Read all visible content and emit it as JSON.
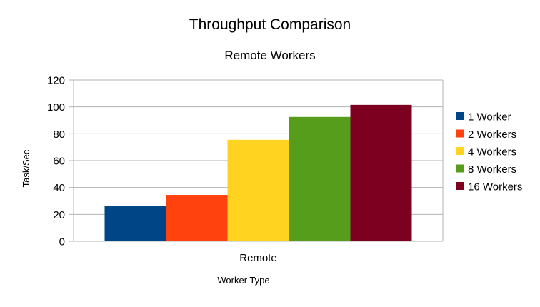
{
  "chart_data": {
    "type": "bar",
    "title": "Throughput Comparison",
    "subtitle": "Remote Workers",
    "xlabel": "Worker Type",
    "ylabel": "Task/Sec",
    "categories": [
      "Remote"
    ],
    "ylim": [
      0,
      120
    ],
    "yticks": [
      0,
      20,
      40,
      60,
      80,
      100,
      120
    ],
    "grid": true,
    "legend_position": "right",
    "series": [
      {
        "name": "1 Worker",
        "values": [
          26.5
        ],
        "color": "#004586"
      },
      {
        "name": "2 Workers",
        "values": [
          34.5
        ],
        "color": "#ff420e"
      },
      {
        "name": "4 Workers",
        "values": [
          75.5
        ],
        "color": "#ffd320"
      },
      {
        "name": "8 Workers",
        "values": [
          92.5
        ],
        "color": "#579d1c"
      },
      {
        "name": "16 Workers",
        "values": [
          101.5
        ],
        "color": "#7e0021"
      }
    ]
  }
}
